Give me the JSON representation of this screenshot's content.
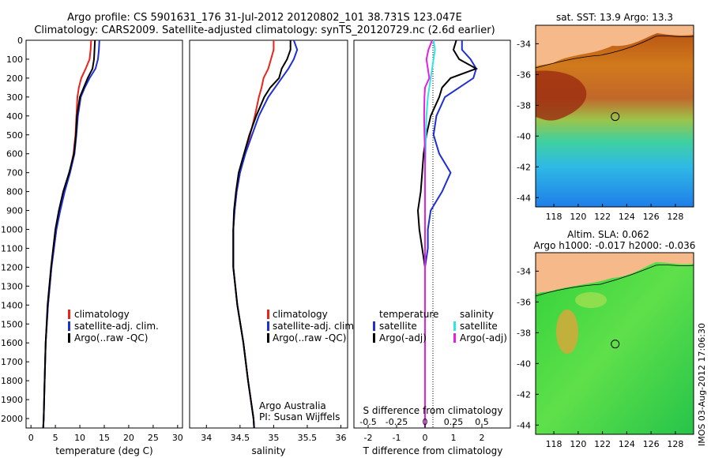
{
  "header": {
    "line1": "Argo profile: CS 5901631_176 31-Jul-2012 20120802_101 38.731S 123.047E",
    "line2": "Climatology: CARS2009. Satellite-adjusted climatology: synTS_20120729.nc (2.6d earlier)"
  },
  "credit": {
    "line1": "Argo Australia",
    "line2": "PI: Susan Wijffels"
  },
  "side_stamp": "IMOS 03-Aug-2012 17:06:30",
  "colors": {
    "climatology": "#e8241b",
    "satellite": "#1f2fd6",
    "argo": "#000000",
    "sal_satellite": "#2fe6e6",
    "sal_argo": "#e61ee6",
    "land": "#f5b98a"
  },
  "chart_data": [
    {
      "type": "line",
      "name": "temperature-profile",
      "xlabel": "temperature (deg C)",
      "xlim": [
        -1,
        31
      ],
      "xticks": [
        0,
        5,
        10,
        15,
        20,
        25,
        30
      ],
      "ylim": [
        0,
        2050
      ],
      "yticks": [
        0,
        100,
        200,
        300,
        400,
        500,
        600,
        700,
        800,
        900,
        1000,
        1100,
        1200,
        1300,
        1400,
        1500,
        1600,
        1700,
        1800,
        1900,
        2000
      ],
      "legend": [
        "climatology",
        "satellite-adj. clim.",
        "Argo(..raw -QC)"
      ],
      "series": [
        {
          "name": "climatology",
          "depth": [
            0,
            50,
            100,
            150,
            200,
            250,
            300,
            400,
            500,
            600,
            700,
            800,
            900,
            1000,
            1200,
            1400,
            1600,
            1800,
            2000,
            2050
          ],
          "values": [
            12.3,
            12.2,
            12.0,
            11.2,
            10.3,
            9.8,
            9.5,
            9.3,
            9.1,
            8.7,
            7.9,
            6.8,
            5.9,
            5.2,
            4.2,
            3.5,
            3.0,
            2.8,
            2.6,
            2.5
          ]
        },
        {
          "name": "satellite-adj. clim.",
          "depth": [
            0,
            50,
            100,
            150,
            200,
            250,
            300,
            400,
            500,
            600,
            700,
            800,
            900,
            1000,
            1200,
            1400,
            1600,
            1800,
            2000,
            2050
          ],
          "values": [
            14.0,
            13.9,
            13.7,
            13.2,
            12.0,
            11.0,
            10.2,
            9.6,
            9.3,
            8.9,
            8.0,
            6.9,
            6.0,
            5.2,
            4.2,
            3.5,
            3.0,
            2.8,
            2.6,
            2.5
          ]
        },
        {
          "name": "Argo(..raw -QC)",
          "depth": [
            0,
            50,
            100,
            150,
            200,
            250,
            300,
            400,
            500,
            600,
            700,
            800,
            900,
            1000,
            1200,
            1400,
            1600,
            1800,
            2000,
            2050
          ],
          "values": [
            13.1,
            13.0,
            12.9,
            12.6,
            11.6,
            10.8,
            10.0,
            9.4,
            9.2,
            8.8,
            7.8,
            6.6,
            5.7,
            5.0,
            4.1,
            3.4,
            3.0,
            2.8,
            2.6,
            2.5
          ]
        }
      ]
    },
    {
      "type": "line",
      "name": "salinity-profile",
      "xlabel": "salinity",
      "xlim": [
        33.75,
        36.1
      ],
      "xticks": [
        34,
        34.5,
        35,
        35.5,
        36
      ],
      "ylim": [
        0,
        2050
      ],
      "legend": [
        "climatology",
        "satellite-adj. clim.",
        "Argo(..raw -QC)"
      ],
      "series": [
        {
          "name": "climatology",
          "depth": [
            0,
            50,
            100,
            150,
            200,
            250,
            300,
            400,
            500,
            600,
            700,
            800,
            900,
            1000,
            1200,
            1400,
            1600,
            1800,
            2000,
            2050
          ],
          "values": [
            35.0,
            35.0,
            34.96,
            34.92,
            34.85,
            34.82,
            34.78,
            34.72,
            34.65,
            34.57,
            34.5,
            34.45,
            34.42,
            34.4,
            34.4,
            34.46,
            34.55,
            34.62,
            34.7,
            34.71
          ]
        },
        {
          "name": "satellite-adj. clim.",
          "depth": [
            0,
            50,
            100,
            150,
            200,
            250,
            300,
            400,
            500,
            600,
            700,
            800,
            900,
            1000,
            1200,
            1400,
            1600,
            1800,
            2000,
            2050
          ],
          "values": [
            35.3,
            35.35,
            35.3,
            35.22,
            35.12,
            35.02,
            34.92,
            34.78,
            34.68,
            34.58,
            34.5,
            34.45,
            34.42,
            34.4,
            34.4,
            34.46,
            34.55,
            34.62,
            34.7,
            34.71
          ]
        },
        {
          "name": "Argo(..raw -QC)",
          "depth": [
            0,
            50,
            100,
            150,
            200,
            250,
            300,
            400,
            500,
            600,
            700,
            800,
            900,
            1000,
            1200,
            1400,
            1600,
            1800,
            2000,
            2050
          ],
          "values": [
            35.25,
            35.25,
            35.2,
            35.12,
            35.08,
            34.95,
            34.86,
            34.74,
            34.64,
            34.56,
            34.48,
            34.44,
            34.41,
            34.4,
            34.4,
            34.46,
            34.55,
            34.62,
            34.7,
            34.71
          ]
        }
      ]
    },
    {
      "type": "line",
      "name": "difference-profile",
      "xlabel": "T difference from climatology",
      "xlabel_top": "S difference from climatology",
      "xlim": [
        -2.5,
        3
      ],
      "xticks": [
        -2,
        -1,
        0,
        1,
        2
      ],
      "xticks_top": [
        -0.5,
        -0.25,
        0,
        0.25,
        0.5
      ],
      "ylim": [
        0,
        2050
      ],
      "legend_temperature": {
        "title": "temperature",
        "items": [
          "satellite",
          "Argo(-adj)"
        ]
      },
      "legend_salinity": {
        "title": "salinity",
        "items": [
          "satellite",
          "Argo(-adj)"
        ]
      },
      "series": [
        {
          "name": "temperature satellite",
          "depth": [
            0,
            50,
            100,
            150,
            200,
            250,
            300,
            400,
            500,
            600,
            700,
            800,
            900,
            1000,
            1100,
            1200,
            1300,
            1400,
            1600,
            1800,
            2000,
            2050
          ],
          "values": [
            1.3,
            1.3,
            1.6,
            1.8,
            1.7,
            1.2,
            0.7,
            0.4,
            0.3,
            0.5,
            0.9,
            0.6,
            0.2,
            0.1,
            0.1,
            0.0,
            0.0,
            0.0,
            0.0,
            0.0,
            0.0,
            0.0
          ]
        },
        {
          "name": "temperature Argo(-adj)",
          "depth": [
            0,
            50,
            100,
            150,
            200,
            250,
            300,
            400,
            500,
            600,
            700,
            800,
            900,
            1000,
            1100,
            1200,
            1300,
            1400,
            1600,
            1800,
            2000,
            2050
          ],
          "values": [
            1.1,
            1.0,
            1.2,
            1.8,
            0.9,
            0.6,
            0.5,
            0.2,
            0.05,
            -0.05,
            -0.1,
            -0.15,
            -0.25,
            -0.2,
            -0.1,
            0.0,
            0.0,
            0.0,
            0.0,
            0.0,
            0.0,
            0.0
          ]
        },
        {
          "name": "salinity satellite",
          "depth": [
            0,
            50,
            100,
            150,
            200,
            250,
            300,
            400,
            500,
            600,
            700,
            800,
            900,
            1000,
            1100,
            1200,
            1300,
            1400,
            1600,
            1800,
            2000,
            2050
          ],
          "values": [
            0.3,
            0.35,
            0.3,
            0.25,
            0.2,
            0.15,
            0.1,
            0.05,
            0.03,
            0.02,
            0.0,
            0.0,
            0.0,
            0.0,
            0.0,
            0.0,
            0.0,
            0.0,
            0.0,
            0.0,
            0.0,
            0.0
          ]
        },
        {
          "name": "salinity Argo(-adj)",
          "depth": [
            0,
            50,
            100,
            150,
            200,
            250,
            300,
            400,
            500,
            600,
            700,
            800,
            900,
            1000,
            1100,
            1200,
            1300,
            1400,
            1600,
            1800,
            2000,
            2050
          ],
          "values": [
            0.25,
            0.12,
            0.05,
            0.1,
            0.15,
            0.0,
            -0.02,
            -0.03,
            -0.02,
            0.0,
            0.0,
            0.0,
            0.0,
            0.0,
            0.0,
            0.0,
            0.0,
            0.0,
            0.0,
            0.0,
            0.0,
            0.0
          ]
        }
      ]
    },
    {
      "type": "heatmap",
      "name": "sst-map",
      "title": "sat. SST: 13.9 Argo: 13.3",
      "xlim": [
        116.5,
        129.5
      ],
      "ylim": [
        -44.6,
        -32.8
      ],
      "xticks": [
        118,
        120,
        122,
        124,
        126,
        128
      ],
      "yticks": [
        -34,
        -36,
        -38,
        -40,
        -42,
        -44
      ],
      "marker": {
        "lon": 123.047,
        "lat": -38.731
      }
    },
    {
      "type": "heatmap",
      "name": "sla-map",
      "title": "Altim. SLA: 0.062",
      "subtitle": "Argo h1000: -0.017 h2000: -0.036",
      "xlim": [
        116.5,
        129.5
      ],
      "ylim": [
        -44.6,
        -32.8
      ],
      "xticks": [
        118,
        120,
        122,
        124,
        126,
        128
      ],
      "yticks": [
        -34,
        -36,
        -38,
        -40,
        -42,
        -44
      ],
      "marker": {
        "lon": 123.047,
        "lat": -38.731
      }
    }
  ]
}
